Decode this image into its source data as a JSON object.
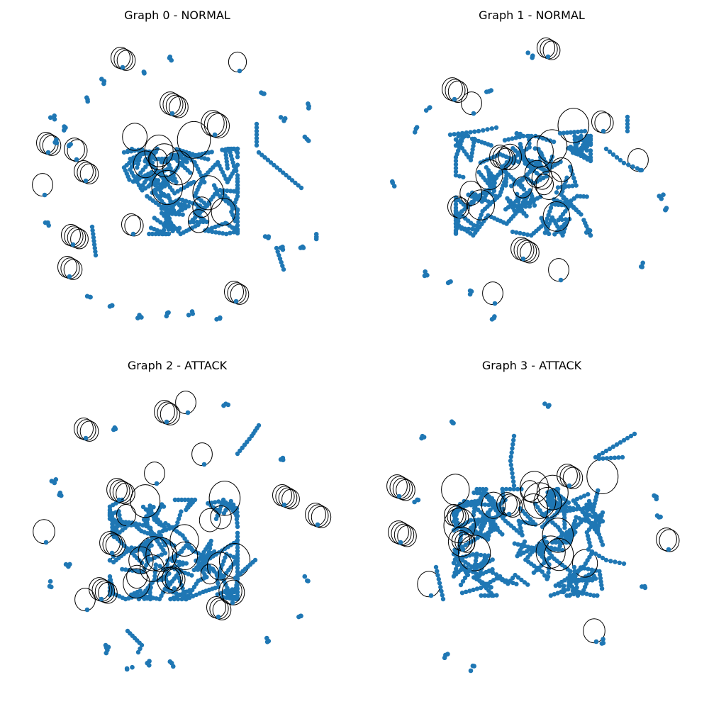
{
  "figure": {
    "panels": [
      {
        "title": "Graph 0 - NORMAL"
      },
      {
        "title": "Graph 1 - NORMAL"
      },
      {
        "title": "Graph 2 - ATTACK"
      },
      {
        "title": "Graph 3 - ATTACK"
      }
    ]
  },
  "colors": {
    "node": "#1f77b4",
    "edge": "#000000",
    "background": "#ffffff"
  }
}
